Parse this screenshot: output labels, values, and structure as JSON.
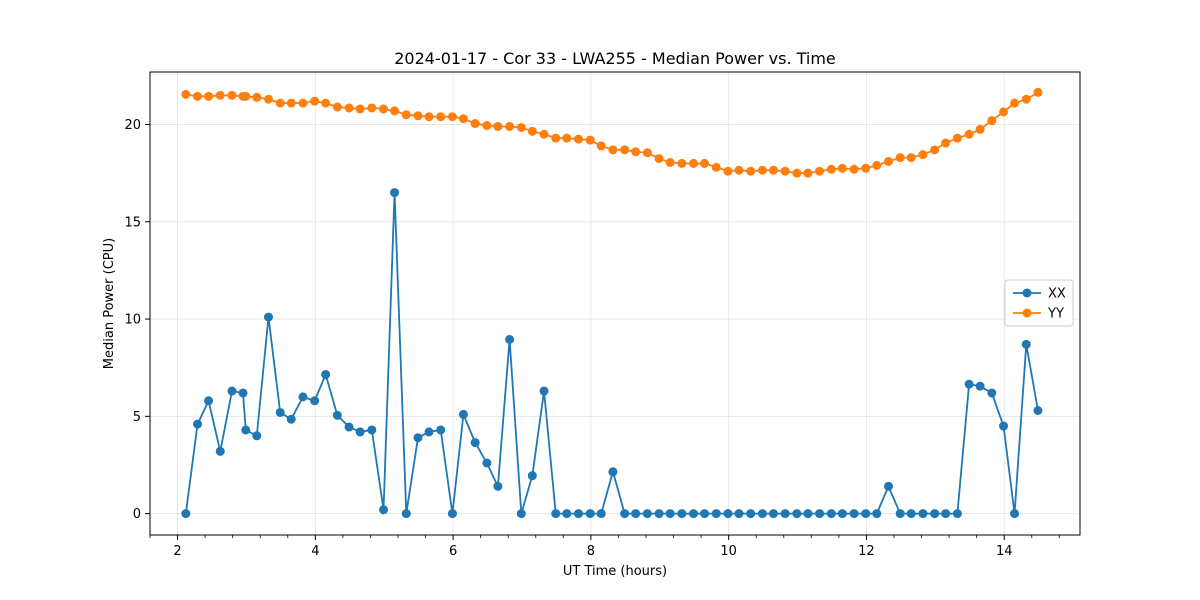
{
  "chart_data": {
    "type": "line",
    "title": "2024-01-17 - Cor 33 - LWA255 - Median Power vs. Time",
    "xlabel": "UT Time (hours)",
    "ylabel": "Median Power (CPU)",
    "xlim": [
      1.6,
      15.1
    ],
    "ylim": [
      -1.1,
      22.7
    ],
    "xticks": [
      2,
      4,
      6,
      8,
      10,
      12,
      14
    ],
    "xtick_labels": [
      "2",
      "4",
      "6",
      "8",
      "10",
      "12",
      "14"
    ],
    "yticks": [
      0,
      5,
      10,
      15,
      20
    ],
    "ytick_labels": [
      "0",
      "5",
      "10",
      "15",
      "20"
    ],
    "grid": true,
    "legend_position": "center-right",
    "x": [
      2.12,
      2.29,
      2.45,
      2.62,
      2.79,
      2.95,
      2.99,
      3.15,
      3.32,
      3.49,
      3.65,
      3.82,
      3.99,
      4.15,
      4.32,
      4.49,
      4.65,
      4.82,
      4.99,
      5.15,
      5.32,
      5.49,
      5.65,
      5.82,
      5.99,
      6.15,
      6.32,
      6.49,
      6.65,
      6.82,
      6.99,
      7.15,
      7.32,
      7.49,
      7.65,
      7.82,
      7.99,
      8.15,
      8.32,
      8.49,
      8.65,
      8.82,
      8.99,
      9.15,
      9.32,
      9.49,
      9.65,
      9.82,
      9.99,
      10.15,
      10.32,
      10.49,
      10.65,
      10.82,
      10.99,
      11.15,
      11.32,
      11.49,
      11.65,
      11.82,
      11.99,
      12.15,
      12.32,
      12.49,
      12.65,
      12.82,
      12.99,
      13.15,
      13.32,
      13.49,
      13.65,
      13.82,
      13.99,
      14.15,
      14.32,
      14.49
    ],
    "series": [
      {
        "name": "XX",
        "color": "#1f77b4",
        "values": [
          0.0,
          4.6,
          5.8,
          3.2,
          6.3,
          6.2,
          4.3,
          4.0,
          10.1,
          5.2,
          4.85,
          6.0,
          5.8,
          7.15,
          5.05,
          4.45,
          4.2,
          4.3,
          0.2,
          16.5,
          0.0,
          3.9,
          4.2,
          4.3,
          0.0,
          5.1,
          3.65,
          2.6,
          1.4,
          8.95,
          0.0,
          1.95,
          6.3,
          0.0,
          0.0,
          0.0,
          0.0,
          0.0,
          2.15,
          0.0,
          0.0,
          0.0,
          0.0,
          0.0,
          0.0,
          0.0,
          0.0,
          0.0,
          0.0,
          0.0,
          0.0,
          0.0,
          0.0,
          0.0,
          0.0,
          0.0,
          0.0,
          0.0,
          0.0,
          0.0,
          0.0,
          0.0,
          1.4,
          0.0,
          0.0,
          0.0,
          0.0,
          0.0,
          0.0,
          6.65,
          6.55,
          6.2,
          4.5,
          0.0,
          8.7,
          5.3
        ]
      },
      {
        "name": "YY",
        "color": "#ff7f0e",
        "values": [
          21.55,
          21.45,
          21.45,
          21.5,
          21.5,
          21.45,
          21.45,
          21.4,
          21.3,
          21.1,
          21.1,
          21.1,
          21.2,
          21.1,
          20.9,
          20.85,
          20.8,
          20.85,
          20.8,
          20.7,
          20.5,
          20.45,
          20.4,
          20.4,
          20.4,
          20.3,
          20.05,
          19.95,
          19.9,
          19.9,
          19.85,
          19.65,
          19.5,
          19.3,
          19.3,
          19.25,
          19.2,
          18.9,
          18.7,
          18.7,
          18.6,
          18.55,
          18.25,
          18.05,
          18.0,
          18.0,
          18.0,
          17.8,
          17.6,
          17.65,
          17.6,
          17.65,
          17.65,
          17.6,
          17.5,
          17.5,
          17.6,
          17.7,
          17.75,
          17.7,
          17.75,
          17.9,
          18.1,
          18.3,
          18.3,
          18.45,
          18.7,
          19.05,
          19.3,
          19.5,
          19.75,
          20.2,
          20.65,
          21.1,
          21.3,
          21.65
        ]
      }
    ]
  }
}
